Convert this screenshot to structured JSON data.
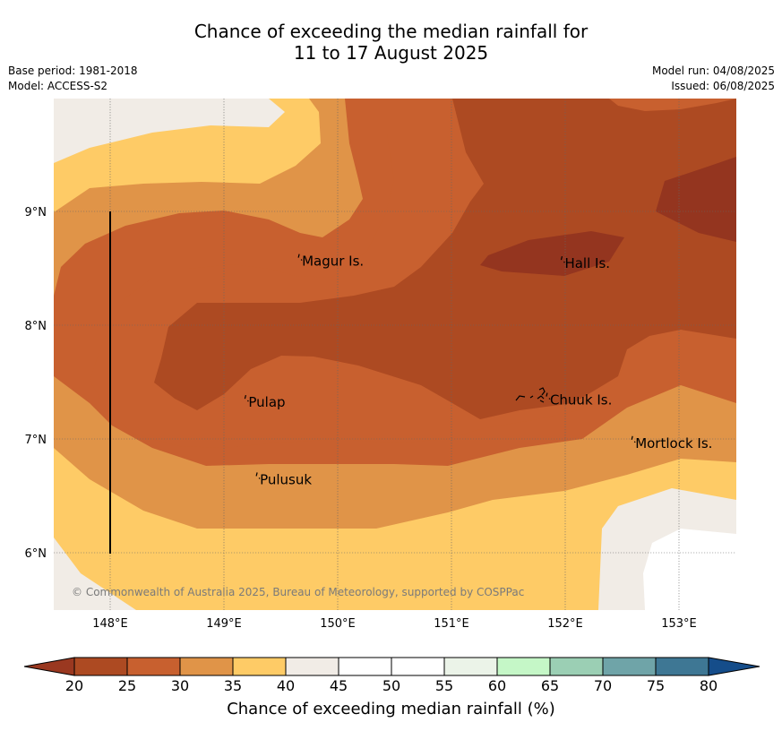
{
  "title_line1": "Chance of exceeding the median rainfall for",
  "title_line2": "11 to 17 August 2025",
  "base_period": "Base period: 1981-2018",
  "model": "Model: ACCESS-S2",
  "model_run": "Model run: 04/08/2025",
  "issued": "Issued: 06/08/2025",
  "copyright": "© Commonwealth of Australia 2025, Bureau of Meteorology, supported by COSPPac",
  "lon_ticks": [
    "148°E",
    "149°E",
    "150°E",
    "151°E",
    "152°E",
    "153°E"
  ],
  "lat_ticks": [
    "9°N",
    "8°N",
    "7°N",
    "6°N"
  ],
  "places": [
    {
      "name": "Magur Is.",
      "lon": 149.67,
      "lat": 8.57
    },
    {
      "name": "Hall Is.",
      "lon": 151.98,
      "lat": 8.55
    },
    {
      "name": "Pulap",
      "lon": 149.2,
      "lat": 7.33
    },
    {
      "name": "Chuuk Is.",
      "lon": 151.85,
      "lat": 7.35
    },
    {
      "name": "Mortlock Is.",
      "lon": 152.6,
      "lat": 6.97
    },
    {
      "name": "Pulusuk",
      "lon": 149.3,
      "lat": 6.65
    }
  ],
  "colorbar": {
    "ticks": [
      "20",
      "25",
      "30",
      "35",
      "40",
      "45",
      "50",
      "55",
      "60",
      "65",
      "70",
      "75",
      "80"
    ],
    "colors": [
      "#ad4a22",
      "#c8602f",
      "#e09448",
      "#fecb66",
      "#f1ece6",
      "#ffffff",
      "#ffffff",
      "#ebf3e8",
      "#c5f7c7",
      "#9bcfb4",
      "#6fa4a8",
      "#3e7794"
    ],
    "low_color": "#9a3820",
    "high_color": "#154d8a",
    "label": "Chance of exceeding median rainfall (%)"
  },
  "map_colors": {
    "c20": "#ad4a22",
    "c15": "#94351f",
    "c25": "#c8602f",
    "c30": "#e09448",
    "c35": "#fecb66",
    "c40": "#f1ece6",
    "c45": "#ffffff"
  }
}
